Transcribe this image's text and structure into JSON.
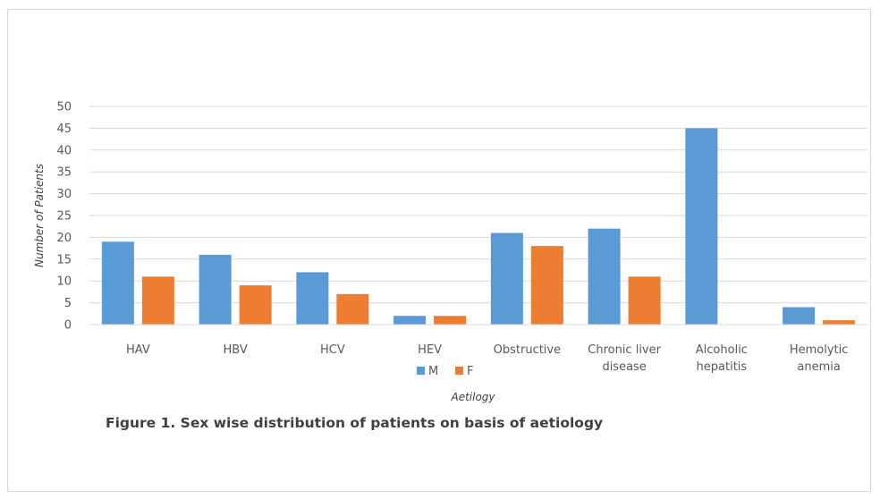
{
  "figure": {
    "caption": "Figure 1. Sex wise distribution of patients on basis of aetiology"
  },
  "chart_data": {
    "type": "bar",
    "title": "",
    "xlabel": "Aetilogy",
    "ylabel": "Number of Patients",
    "ylim": [
      0,
      50
    ],
    "yticks": [
      0,
      5,
      10,
      15,
      20,
      25,
      30,
      35,
      40,
      45,
      50
    ],
    "grid": true,
    "legend_position": "bottom",
    "categories": [
      [
        "HAV"
      ],
      [
        "HBV"
      ],
      [
        "HCV"
      ],
      [
        "HEV"
      ],
      [
        "Obstructive"
      ],
      [
        "Chronic liver",
        "disease"
      ],
      [
        "Alcoholic",
        "hepatitis"
      ],
      [
        "Hemolytic",
        "anemia"
      ]
    ],
    "series": [
      {
        "name": "M",
        "color": "#5b9bd5",
        "values": [
          19,
          16,
          12,
          2,
          21,
          22,
          45,
          4
        ]
      },
      {
        "name": "F",
        "color": "#ed7d31",
        "values": [
          11,
          9,
          7,
          2,
          18,
          11,
          0,
          1
        ]
      }
    ]
  }
}
